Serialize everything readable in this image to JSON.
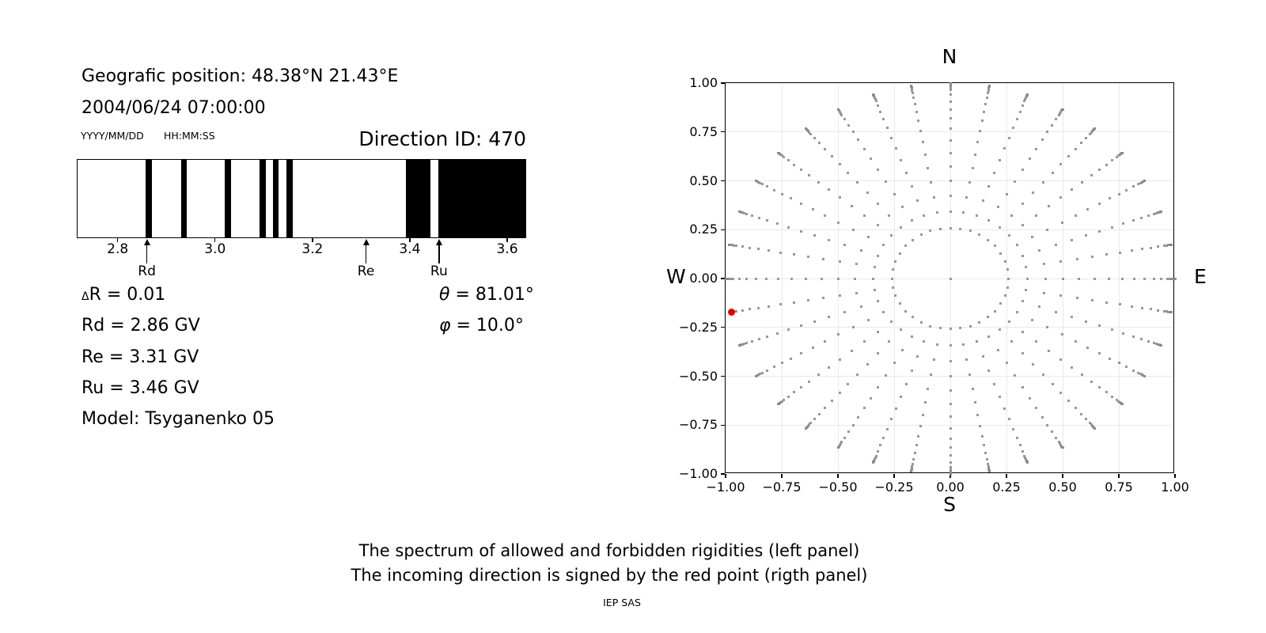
{
  "header": {
    "geo_position": "Geografic position: 48.38°N 21.43°E",
    "datetime": "2004/06/24 07:00:00",
    "date_format": "YYYY/MM/DD",
    "time_format": "HH:MM:SS",
    "direction_id": "Direction ID: 470"
  },
  "info": {
    "left_lines": [
      {
        "sym": "Δ",
        "style": "small",
        "text": "R = 0.01"
      },
      {
        "sym": "",
        "style": "",
        "text": "Rd = 2.86 GV"
      },
      {
        "sym": "",
        "style": "",
        "text": "Re = 3.31 GV"
      },
      {
        "sym": "",
        "style": "",
        "text": "Ru = 3.46 GV"
      },
      {
        "sym": "",
        "style": "",
        "text": "Model: Tsyganenko 05"
      }
    ],
    "right_lines": [
      {
        "sym": "θ",
        "style": "italic",
        "text": " = 81.01°"
      },
      {
        "sym": "φ",
        "style": "italic",
        "text": " = 10.0°"
      }
    ]
  },
  "captions": {
    "line1": "The spectrum of allowed and forbidden rigidities (left panel)",
    "line2": "The incoming direction is signed by the red point (rigth panel)",
    "credit": "IEP SAS"
  },
  "chart_data": [
    {
      "type": "bar",
      "title": "Direction ID: 470",
      "description": "Rigidity spectrum: white = allowed, black = forbidden",
      "xlim": [
        2.716,
        3.639
      ],
      "xticks": [
        2.8,
        3.0,
        3.2,
        3.4,
        3.6
      ],
      "forbidden_bands_gv": [
        [
          2.857,
          2.869
        ],
        [
          2.929,
          2.941
        ],
        [
          3.02,
          3.033
        ],
        [
          3.091,
          3.104
        ],
        [
          3.119,
          3.131
        ],
        [
          3.146,
          3.16
        ],
        [
          3.392,
          3.444
        ],
        [
          3.459,
          3.639
        ]
      ],
      "markers": [
        {
          "label": "Rd",
          "value_gv": 2.86
        },
        {
          "label": "Re",
          "value_gv": 3.31
        },
        {
          "label": "Ru",
          "value_gv": 3.46
        }
      ],
      "bar_color": "#000000"
    },
    {
      "type": "scatter",
      "xlim": [
        -1,
        1
      ],
      "ylim": [
        -1,
        1
      ],
      "xticks": [
        -1,
        -0.75,
        -0.5,
        -0.25,
        0,
        0.25,
        0.5,
        0.75,
        1
      ],
      "yticks": [
        -1,
        -0.75,
        -0.5,
        -0.25,
        0,
        0.25,
        0.5,
        0.75,
        1
      ],
      "grid": true,
      "compass": {
        "top": "N",
        "bottom": "S",
        "left": "W",
        "right": "E"
      },
      "direction_grid": {
        "azimuth_start_deg": 0,
        "azimuth_step_deg": 10,
        "azimuth_count": 36,
        "zenith_angles_deg": [
          15,
          20,
          25,
          30,
          35,
          40,
          45,
          50,
          55,
          60,
          65,
          70,
          75,
          77.5,
          80,
          82.5,
          85,
          87.5,
          90
        ],
        "radius_rule": "sin(zenith)",
        "center_dot": true,
        "dot_color": "#8a8a8a"
      },
      "red_point": {
        "x": -0.973,
        "y": -0.172,
        "zenith_deg": 81.01,
        "azimuth_display_deg": 10.0,
        "ray_azimuth_from_north_deg": 260,
        "color": "#e80000"
      }
    }
  ]
}
